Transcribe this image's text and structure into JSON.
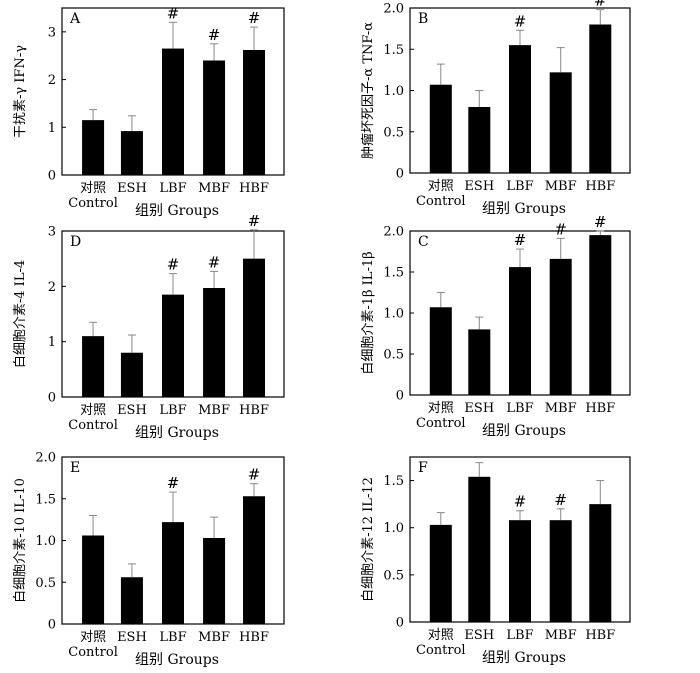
{
  "chart_data": [
    {
      "type": "bar",
      "panel": "A",
      "ylabel": "干扰素-γ IFN-γ",
      "xlabel": "组别 Groups",
      "categories": [
        "对照\nControl",
        "ESH",
        "LBF",
        "MBF",
        "HBF"
      ],
      "values": [
        1.15,
        0.92,
        2.65,
        2.4,
        2.62
      ],
      "errors": [
        0.22,
        0.32,
        0.55,
        0.35,
        0.48
      ],
      "significance": [
        "",
        "",
        "#",
        "#",
        "#"
      ],
      "ylim": [
        0,
        3.5
      ],
      "yticks": [
        "0",
        "1",
        "2",
        "3"
      ]
    },
    {
      "type": "bar",
      "panel": "B",
      "ylabel": "肿瘤坏死因子-α TNF-α",
      "xlabel": "组别 Groups",
      "categories": [
        "对照\nControl",
        "ESH",
        "LBF",
        "MBF",
        "HBF"
      ],
      "values": [
        1.07,
        0.8,
        1.55,
        1.22,
        1.8
      ],
      "errors": [
        0.25,
        0.2,
        0.18,
        0.3,
        0.18
      ],
      "significance": [
        "",
        "",
        "#",
        "",
        "#"
      ],
      "ylim": [
        0,
        2.0
      ],
      "yticks": [
        "0",
        "0.5",
        "1.0",
        "1.5",
        "2.0"
      ]
    },
    {
      "type": "bar",
      "panel": "D",
      "ylabel": "白细胞介素-4 IL-4",
      "xlabel": "组别 Groups",
      "categories": [
        "对照\nControl",
        "ESH",
        "LBF",
        "MBF",
        "HBF"
      ],
      "values": [
        1.1,
        0.8,
        1.85,
        1.97,
        2.5
      ],
      "errors": [
        0.25,
        0.32,
        0.38,
        0.3,
        0.52
      ],
      "significance": [
        "",
        "",
        "#",
        "#",
        "#"
      ],
      "ylim": [
        0,
        3.0
      ],
      "yticks": [
        "0",
        "1",
        "2",
        "3"
      ]
    },
    {
      "type": "bar",
      "panel": "C",
      "ylabel": "白细胞介素-1β IL-1β",
      "xlabel": "组别 Groups",
      "categories": [
        "对照\nControl",
        "ESH",
        "LBF",
        "MBF",
        "HBF"
      ],
      "values": [
        1.07,
        0.8,
        1.56,
        1.66,
        1.95
      ],
      "errors": [
        0.18,
        0.15,
        0.22,
        0.25,
        0.05
      ],
      "significance": [
        "",
        "",
        "#",
        "#",
        "#"
      ],
      "ylim": [
        0,
        2.0
      ],
      "yticks": [
        "0",
        "0.5",
        "1.0",
        "1.5",
        "2.0"
      ]
    },
    {
      "type": "bar",
      "panel": "E",
      "ylabel": "白细胞介素-10 IL-10",
      "xlabel": "组别 Groups",
      "categories": [
        "对照\nControl",
        "ESH",
        "LBF",
        "MBF",
        "HBF"
      ],
      "values": [
        1.06,
        0.56,
        1.22,
        1.03,
        1.53
      ],
      "errors": [
        0.24,
        0.16,
        0.36,
        0.25,
        0.15
      ],
      "significance": [
        "",
        "",
        "#",
        "",
        "#"
      ],
      "ylim": [
        0,
        2.0
      ],
      "yticks": [
        "0",
        "0.5",
        "1.0",
        "1.5",
        "2.0"
      ]
    },
    {
      "type": "bar",
      "panel": "F",
      "ylabel": "白细胞介素-12 IL-12",
      "xlabel": "组别 Groups",
      "categories": [
        "对照\nControl",
        "ESH",
        "LBF",
        "MBF",
        "HBF"
      ],
      "values": [
        1.03,
        1.54,
        1.08,
        1.08,
        1.25
      ],
      "errors": [
        0.13,
        0.15,
        0.1,
        0.12,
        0.25
      ],
      "significance": [
        "",
        "",
        "#",
        "#",
        ""
      ],
      "ylim": [
        0,
        1.75
      ],
      "yticks": [
        "0",
        "0.5",
        "1.0",
        "1.5"
      ]
    }
  ]
}
